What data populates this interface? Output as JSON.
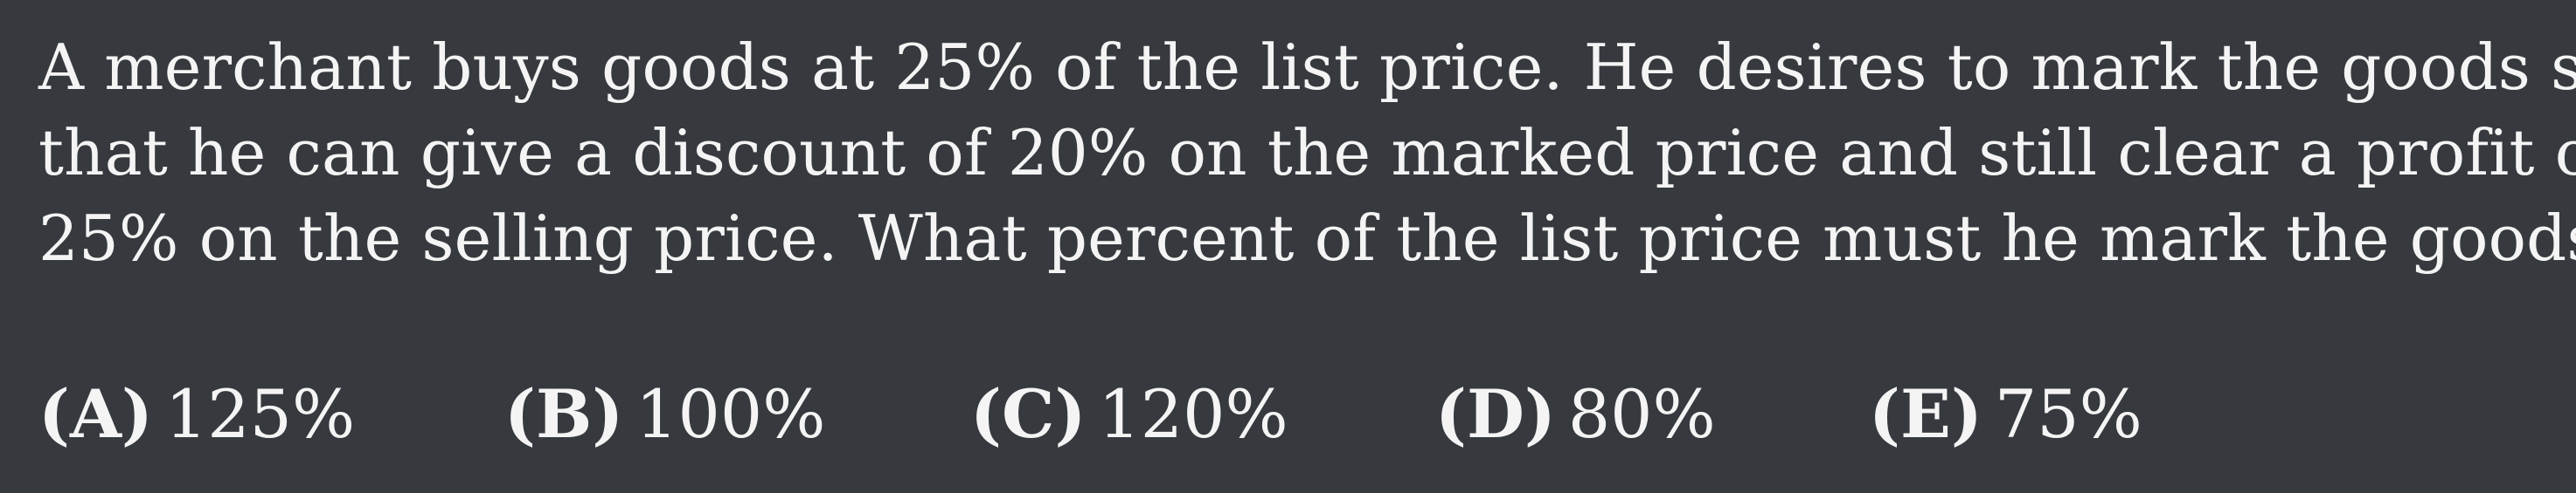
{
  "problem": {
    "lines": [
      "A merchant buys goods at 25% of the list price. He desires to mark the goods so",
      "that he can give a discount of 20% on the marked price and still clear a profit of",
      "25% on the selling price. What percent of the list price must he mark the goods?"
    ]
  },
  "choices": [
    {
      "letter": "(A)",
      "value": "125%"
    },
    {
      "letter": "(B)",
      "value": "100%"
    },
    {
      "letter": "(C)",
      "value": "120%"
    },
    {
      "letter": "(D)",
      "value": "80%"
    },
    {
      "letter": "(E)",
      "value": "75%"
    }
  ],
  "colors": {
    "background": "#36393e",
    "text": "#f4f4f4"
  }
}
